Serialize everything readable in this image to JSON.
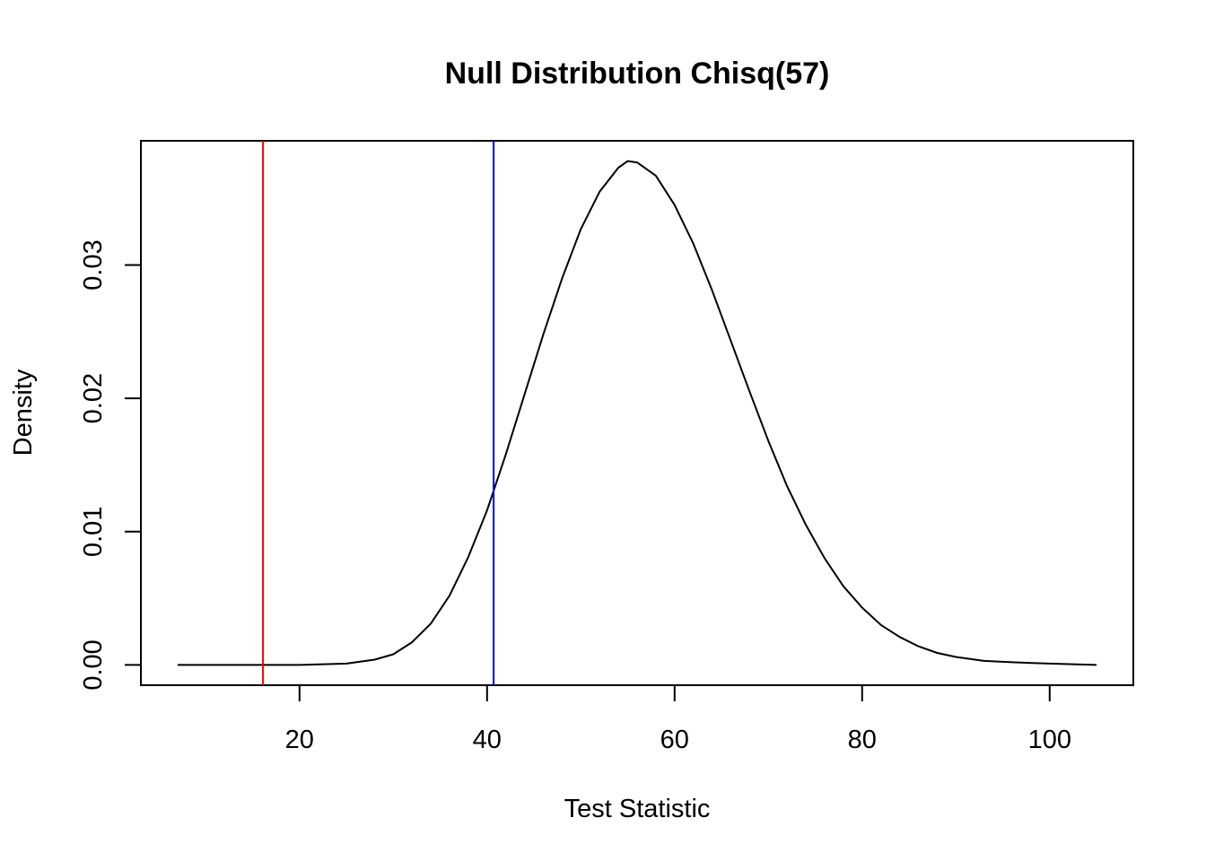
{
  "chart_data": {
    "type": "line",
    "title": "Null Distribution Chisq(57)",
    "xlabel": "Test Statistic",
    "ylabel": "Density",
    "xlim": [
      7,
      105
    ],
    "ylim": [
      0,
      0.038
    ],
    "x_ticks": [
      20,
      40,
      60,
      80,
      100
    ],
    "y_ticks": [
      0.0,
      0.01,
      0.02,
      0.03
    ],
    "x_tick_labels": [
      "20",
      "40",
      "60",
      "80",
      "100"
    ],
    "y_tick_labels": [
      "0.00",
      "0.01",
      "0.02",
      "0.03"
    ],
    "grid": false,
    "series": [
      {
        "color": "#000000",
        "x": [
          7,
          10,
          15,
          20,
          25,
          28,
          30,
          32,
          34,
          36,
          38,
          40,
          42,
          44,
          46,
          48,
          50,
          52,
          54,
          55,
          56,
          58,
          60,
          62,
          64,
          66,
          68,
          70,
          72,
          74,
          76,
          78,
          80,
          82,
          84,
          86,
          88,
          90,
          93,
          96,
          100,
          105
        ],
        "y": [
          0,
          0,
          0,
          0,
          0.0001,
          0.0004,
          0.0008,
          0.0017,
          0.0031,
          0.0052,
          0.0081,
          0.0116,
          0.0158,
          0.0203,
          0.0248,
          0.029,
          0.0327,
          0.0355,
          0.0373,
          0.0378,
          0.0377,
          0.0367,
          0.0345,
          0.0316,
          0.0281,
          0.0243,
          0.0205,
          0.0168,
          0.0134,
          0.0105,
          0.008,
          0.0059,
          0.0043,
          0.003,
          0.0021,
          0.0014,
          0.0009,
          0.0006,
          0.0003,
          0.0002,
          0.0001,
          0
        ]
      }
    ],
    "vlines": [
      {
        "x": 16.1,
        "color": "#ff0000"
      },
      {
        "x": 40.7,
        "color": "#0000ff"
      }
    ]
  }
}
